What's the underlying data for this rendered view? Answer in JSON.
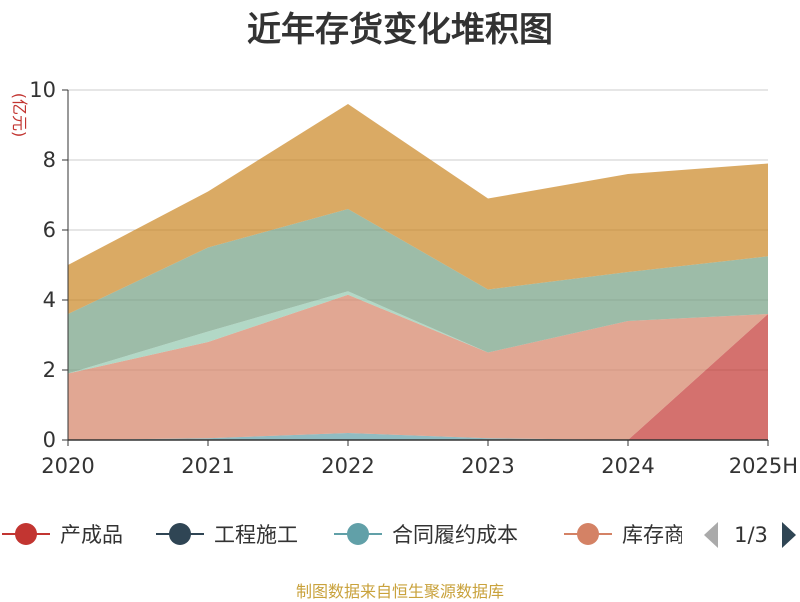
{
  "title": "近年存货变化堆积图",
  "source_note": "制图数据来自恒生聚源数据库",
  "chart_data": {
    "type": "area",
    "stacked": true,
    "title": "近年存货变化堆积图",
    "ylabel": "(亿元)",
    "xlabel": "",
    "categories": [
      "2020",
      "2021",
      "2022",
      "2023",
      "2024",
      "2025H"
    ],
    "ylim": [
      0,
      10
    ],
    "yticks": [
      0,
      2,
      4,
      6,
      8,
      10
    ],
    "grid": true,
    "legend_position": "bottom",
    "legend_page": "1/3",
    "series": [
      {
        "name": "产成品",
        "color": "#c23531",
        "values": [
          0,
          0,
          0,
          0,
          0,
          3.6
        ]
      },
      {
        "name": "工程施工",
        "color": "#2f4554",
        "values": [
          0,
          0,
          0,
          0,
          0,
          0
        ]
      },
      {
        "name": "合同履约成本",
        "color": "#61a0a8",
        "values": [
          0,
          0.05,
          0.2,
          0.05,
          0,
          0
        ]
      },
      {
        "name": "库存商品",
        "color": "#d48265",
        "values": [
          1.9,
          2.75,
          3.95,
          2.45,
          3.4,
          0
        ]
      },
      {
        "name": "",
        "color": "#91c7ae",
        "values": [
          0,
          0.3,
          0.1,
          0,
          0,
          0
        ]
      },
      {
        "name": "",
        "color": "#749f83",
        "values": [
          1.7,
          2.4,
          2.35,
          1.8,
          1.4,
          1.65
        ]
      },
      {
        "name": "",
        "color": "#ca8622",
        "values": [
          1.4,
          1.6,
          3.0,
          2.6,
          2.8,
          2.65
        ]
      }
    ]
  }
}
